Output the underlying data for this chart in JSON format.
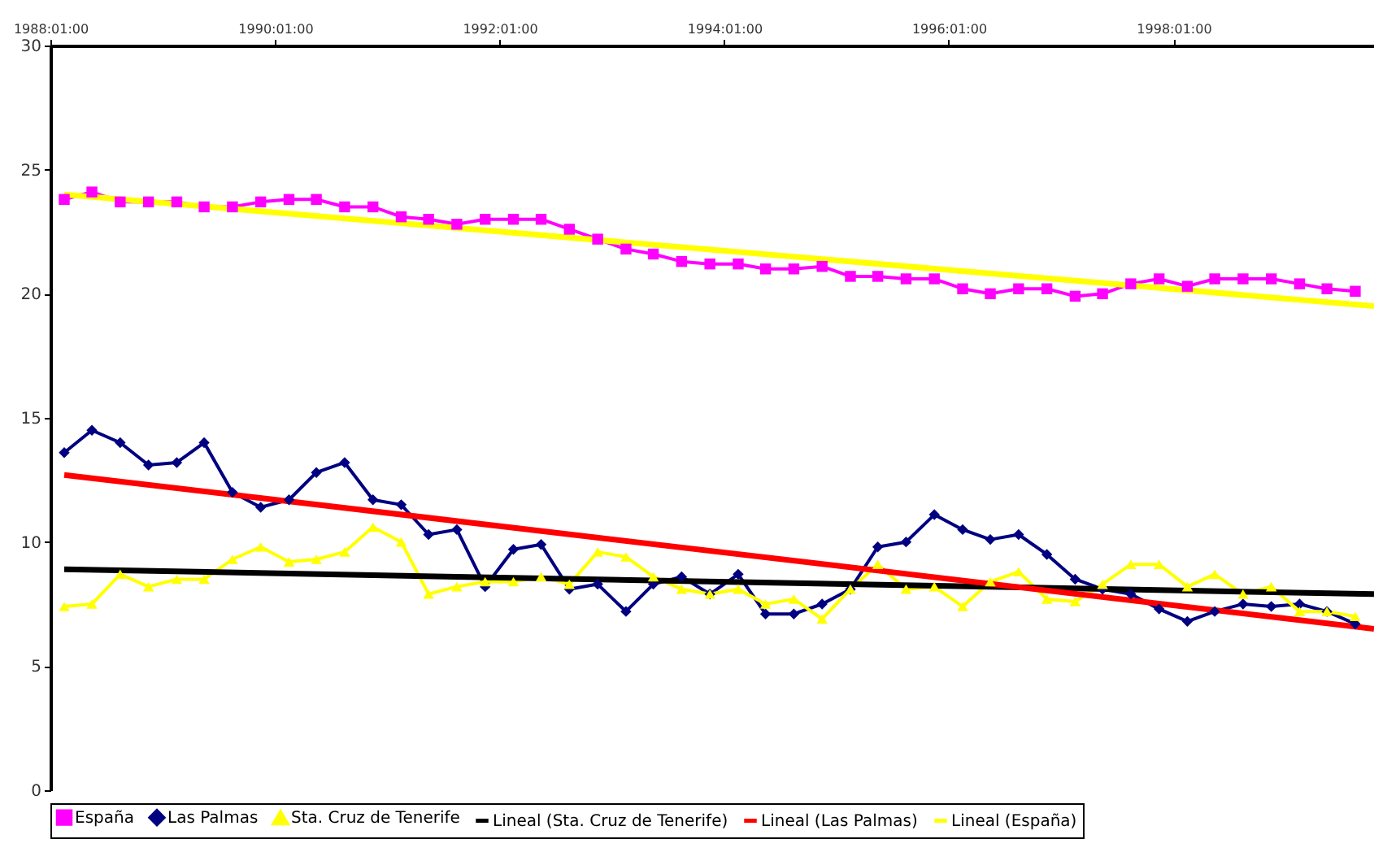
{
  "chart_data": {
    "type": "line",
    "x": [
      "1988-02-15",
      "1988-05-15",
      "1988-08-15",
      "1988-11-15",
      "1989-02-15",
      "1989-05-15",
      "1989-08-15",
      "1989-11-15",
      "1990-02-15",
      "1990-05-15",
      "1990-08-15",
      "1990-11-15",
      "1991-02-15",
      "1991-05-15",
      "1991-08-15",
      "1991-11-15",
      "1992-02-15",
      "1992-05-15",
      "1992-08-15",
      "1992-11-15",
      "1993-02-15",
      "1993-05-15",
      "1993-08-15",
      "1993-11-15",
      "1994-02-15",
      "1994-05-15",
      "1994-08-15",
      "1994-11-15",
      "1995-02-15",
      "1995-05-15",
      "1995-08-15",
      "1995-11-15",
      "1996-02-15",
      "1996-05-15",
      "1996-08-15",
      "1996-11-15",
      "1997-02-15",
      "1997-05-15",
      "1997-08-15",
      "1997-11-15",
      "1998-02-15",
      "1998-05-15",
      "1998-08-15",
      "1998-11-15",
      "1999-02-15",
      "1999-05-15",
      "1999-08-15"
    ],
    "series": [
      {
        "name": "España",
        "color": "#ff00ff",
        "marker": "square",
        "values": [
          23.8,
          24.1,
          23.7,
          23.7,
          23.7,
          23.5,
          23.5,
          23.7,
          23.8,
          23.8,
          23.5,
          23.5,
          23.1,
          23.0,
          22.8,
          23.0,
          23.0,
          23.0,
          22.6,
          22.2,
          21.8,
          21.6,
          21.3,
          21.2,
          21.2,
          21.0,
          21.0,
          21.1,
          20.7,
          20.7,
          20.6,
          20.6,
          20.2,
          20.0,
          20.2,
          20.2,
          19.9,
          20.0,
          20.4,
          20.6,
          20.3,
          20.6,
          20.6,
          20.6,
          20.4,
          20.2,
          20.1
        ]
      },
      {
        "name": "Las Palmas",
        "color": "#000080",
        "marker": "diamond",
        "values": [
          13.6,
          14.5,
          14.0,
          13.1,
          13.2,
          14.0,
          12.0,
          11.4,
          11.7,
          12.8,
          13.2,
          11.7,
          11.5,
          10.3,
          10.5,
          8.2,
          9.7,
          9.9,
          8.1,
          8.3,
          7.2,
          8.3,
          8.6,
          7.9,
          8.7,
          7.1,
          7.1,
          7.5,
          8.1,
          9.8,
          10.0,
          11.1,
          10.5,
          10.1,
          10.3,
          9.5,
          8.5,
          8.1,
          7.9,
          7.3,
          6.8,
          7.2,
          7.5,
          7.4,
          7.5,
          7.2,
          6.7
        ]
      },
      {
        "name": "Sta. Cruz de Tenerife",
        "color": "#ffff00",
        "marker": "triangle",
        "values": [
          7.4,
          7.5,
          8.7,
          8.2,
          8.5,
          8.5,
          9.3,
          9.8,
          9.2,
          9.3,
          9.6,
          10.6,
          10.0,
          7.9,
          8.2,
          8.4,
          8.4,
          8.6,
          8.3,
          9.6,
          9.4,
          8.6,
          8.1,
          7.9,
          8.1,
          7.5,
          7.7,
          6.9,
          8.1,
          9.1,
          8.1,
          8.2,
          7.4,
          8.4,
          8.8,
          7.7,
          7.6,
          8.3,
          9.1,
          9.1,
          8.2,
          8.7,
          7.9,
          8.2,
          7.2,
          7.2,
          7.0
        ]
      },
      {
        "name": "Lineal (Sta. Cruz de Tenerife)",
        "color": "#000000",
        "type": "line",
        "marker": "none",
        "x": [
          "1988-02-15",
          "1999-10-15"
        ],
        "values": [
          8.9,
          7.9
        ]
      },
      {
        "name": "Lineal (Las Palmas)",
        "color": "#ff0000",
        "type": "line",
        "marker": "none",
        "x": [
          "1988-02-15",
          "1999-10-15"
        ],
        "values": [
          12.7,
          6.5
        ]
      },
      {
        "name": "Lineal (España)",
        "color": "#ffff00",
        "type": "line",
        "marker": "none",
        "x": [
          "1988-02-15",
          "1999-10-15"
        ],
        "values": [
          24.0,
          19.5
        ]
      }
    ],
    "xlim": [
      "1988-01-01",
      "1999-10-15"
    ],
    "xticks": [
      {
        "value": "1988-01-01",
        "label": "1988:01:00"
      },
      {
        "value": "1990-01-01",
        "label": "1990:01:00"
      },
      {
        "value": "1992-01-01",
        "label": "1992:01:00"
      },
      {
        "value": "1994-01-01",
        "label": "1994:01:00"
      },
      {
        "value": "1996-01-01",
        "label": "1996:01:00"
      },
      {
        "value": "1998-01-01",
        "label": "1998:01:00"
      }
    ],
    "ylim": [
      0,
      30
    ],
    "yticks": [
      0,
      5,
      10,
      15,
      20,
      25,
      30
    ],
    "legend": "bottom"
  }
}
